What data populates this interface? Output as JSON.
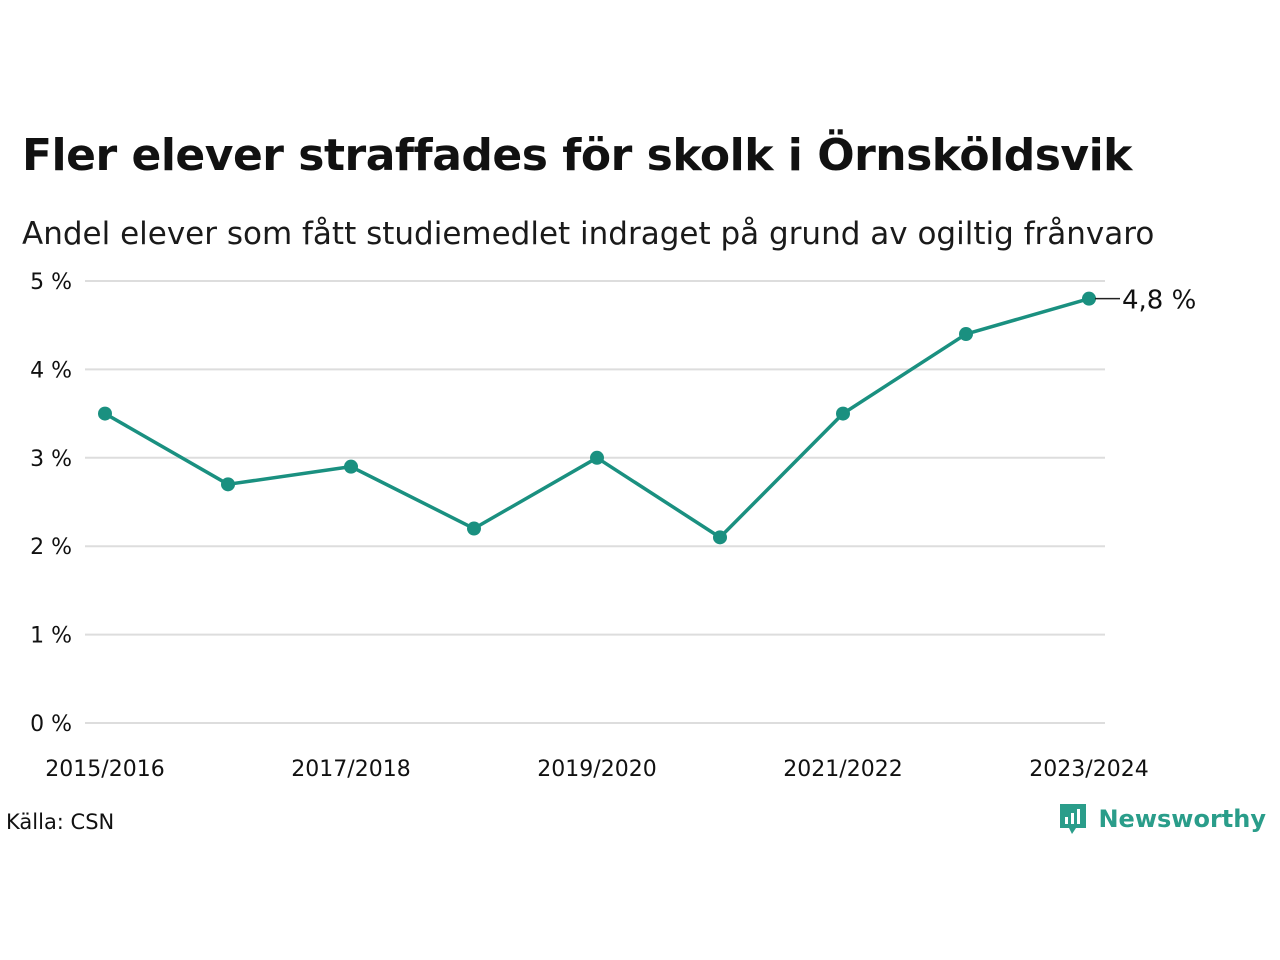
{
  "title": "Fler elever straffades för skolk i Örnsköldsvik",
  "subtitle": "Andel elever som fått studiemedlet indraget på grund av ogiltig frånvaro",
  "source": "Källa: CSN",
  "brand": {
    "name": "Newsworthy",
    "icon": "newsworthy-logo-icon",
    "color": "#2a9d8a"
  },
  "colors": {
    "series": "#1a9080",
    "grid": "#dddddd",
    "text": "#111111"
  },
  "chart_data": {
    "type": "line",
    "x": [
      "2015/2016",
      "2016/2017",
      "2017/2018",
      "2018/2019",
      "2019/2020",
      "2020/2021",
      "2021/2022",
      "2022/2023",
      "2023/2024"
    ],
    "x_tick_labels": [
      "2015/2016",
      "",
      "2017/2018",
      "",
      "2019/2020",
      "",
      "2021/2022",
      "",
      "2023/2024"
    ],
    "series": [
      {
        "values": [
          3.5,
          2.7,
          2.9,
          2.2,
          3.0,
          2.1,
          3.5,
          4.4,
          4.8
        ]
      }
    ],
    "y_ticks": [
      0,
      1,
      2,
      3,
      4,
      5
    ],
    "y_tick_labels": [
      "0 %",
      "1 %",
      "2 %",
      "3 %",
      "4 %",
      "5 %"
    ],
    "ylim": [
      0,
      5
    ],
    "end_label": "4,8 %",
    "xlabel": "",
    "ylabel": "",
    "grid": true
  }
}
